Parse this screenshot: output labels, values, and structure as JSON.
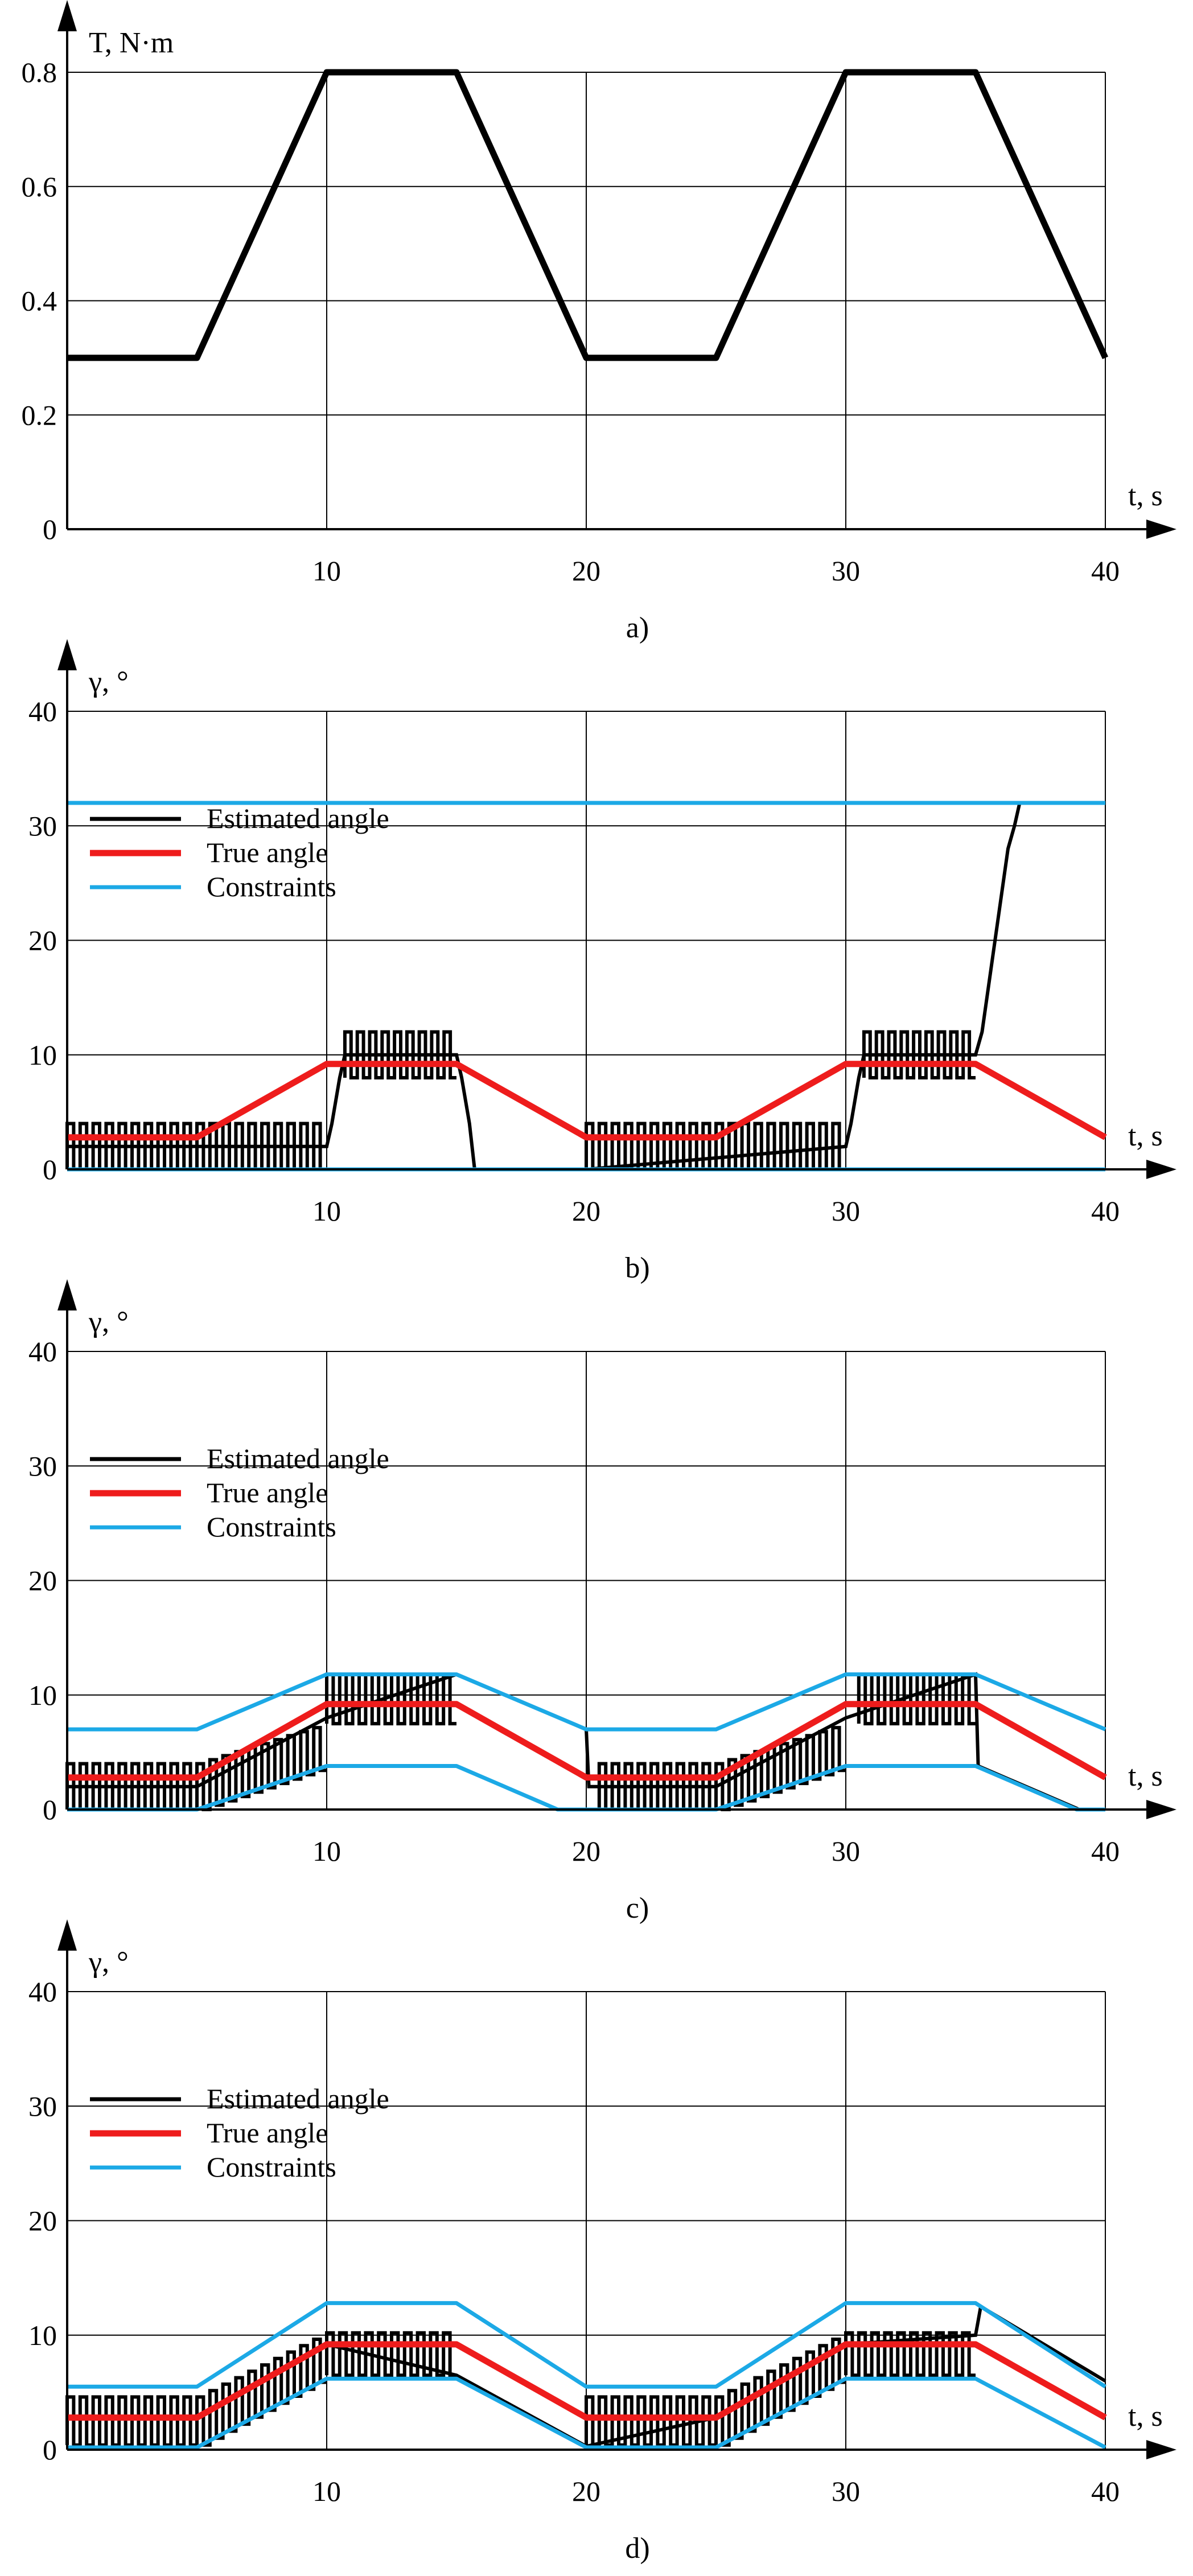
{
  "chart_data": [
    {
      "panel_label": "a)",
      "type": "line",
      "ylabel": "T, N·m",
      "xlabel": "t, s",
      "xlim": [
        0,
        40
      ],
      "ylim": [
        0,
        0.8
      ],
      "xticks": [
        10,
        20,
        30,
        40
      ],
      "yticks": [
        0,
        0.2,
        0.4,
        0.6,
        0.8
      ],
      "ytick_labels": [
        "0",
        "0.2",
        "0.4",
        "0.6",
        "0.8"
      ],
      "grid": true,
      "series": [
        {
          "color": "#000000",
          "style": "solid",
          "x": [
            0,
            5,
            10,
            15,
            20,
            25,
            30,
            35,
            40
          ],
          "y": [
            0.3,
            0.3,
            0.8,
            0.8,
            0.3,
            0.3,
            0.8,
            0.8,
            0.3
          ]
        }
      ]
    },
    {
      "panel_label": "b)",
      "type": "line",
      "ylabel": "γ, °",
      "xlabel": "t, s",
      "xlim": [
        0,
        40
      ],
      "ylim": [
        0,
        40
      ],
      "xticks": [
        10,
        20,
        30,
        40
      ],
      "yticks": [
        0,
        10,
        20,
        30,
        40
      ],
      "grid": true,
      "legend_position": "left",
      "series": [
        {
          "name": "Estimated angle",
          "color": "#000000",
          "style": "step",
          "x": [
            0,
            10,
            10.2,
            10.5,
            10.7,
            15,
            15.2,
            15.5,
            15.7,
            20,
            30,
            30.2,
            30.5,
            30.7,
            35,
            35.25,
            35.5,
            35.75,
            36,
            36.25,
            36.5,
            36.7,
            40
          ],
          "y": [
            2,
            2,
            4,
            8,
            10,
            10,
            8,
            4,
            0,
            0,
            2,
            4,
            8,
            10,
            10,
            12,
            16,
            20,
            24,
            28,
            30,
            32,
            32
          ],
          "dither_intervals": [
            {
              "x_from": 0,
              "x_to": 10,
              "lower": [
                0,
                0,
                0,
                0
              ],
              "upper": [
                4,
                4,
                4,
                4
              ]
            },
            {
              "x_from": 10.7,
              "x_to": 15,
              "lower": [
                8,
                8
              ],
              "upper": [
                12,
                12
              ]
            },
            {
              "x_from": 20,
              "x_to": 30,
              "lower": [
                0,
                0,
                0,
                0
              ],
              "upper": [
                4,
                4,
                4,
                4
              ]
            },
            {
              "x_from": 30.7,
              "x_to": 35,
              "lower": [
                8,
                8
              ],
              "upper": [
                12,
                12
              ]
            }
          ]
        },
        {
          "name": "True angle",
          "color": "#ee1c1c",
          "style": "solid",
          "x": [
            0,
            5,
            10,
            15,
            20,
            25,
            30,
            35,
            40
          ],
          "y": [
            2.8,
            2.8,
            9.2,
            9.2,
            2.8,
            2.8,
            9.2,
            9.2,
            2.8
          ]
        },
        {
          "name": "Constraints",
          "color": "#1ca9e6",
          "style": "solid",
          "x": [
            0,
            40
          ],
          "y": [
            32,
            32
          ]
        },
        {
          "name": "Constraints",
          "color": "#1ca9e6",
          "style": "solid",
          "x": [
            0,
            40
          ],
          "y": [
            0,
            0
          ]
        }
      ]
    },
    {
      "panel_label": "c)",
      "type": "line",
      "ylabel": "γ, °",
      "xlabel": "t, s",
      "xlim": [
        0,
        40
      ],
      "ylim": [
        0,
        40
      ],
      "xticks": [
        10,
        20,
        30,
        40
      ],
      "yticks": [
        0,
        10,
        20,
        30,
        40
      ],
      "grid": true,
      "legend_position": "left",
      "series": [
        {
          "name": "Estimated angle",
          "color": "#000000",
          "style": "step",
          "x": [
            0,
            5,
            10,
            15,
            20,
            20.1,
            25,
            30,
            35,
            35.1,
            39,
            40
          ],
          "y": [
            2,
            2,
            8,
            11.8,
            7,
            2,
            2,
            8,
            11.8,
            3.8,
            0,
            0
          ],
          "dither_intervals": [
            {
              "x_from": 0,
              "x_to": 5,
              "lower": [
                0,
                0
              ],
              "upper": [
                4,
                4
              ]
            },
            {
              "x_from": 5,
              "x_to": 10,
              "lower": [
                0,
                3.8
              ],
              "upper": [
                4,
                7.5
              ]
            },
            {
              "x_from": 10,
              "x_to": 15,
              "lower": [
                7.5,
                7.5
              ],
              "upper": [
                11.8,
                11.8
              ]
            },
            {
              "x_from": 20.5,
              "x_to": 25,
              "lower": [
                0,
                0
              ],
              "upper": [
                4,
                4
              ]
            },
            {
              "x_from": 25,
              "x_to": 30,
              "lower": [
                0,
                3.8
              ],
              "upper": [
                4,
                7.5
              ]
            },
            {
              "x_from": 30.5,
              "x_to": 35,
              "lower": [
                7.5,
                7.5
              ],
              "upper": [
                11.8,
                11.8
              ]
            }
          ]
        },
        {
          "name": "True angle",
          "color": "#ee1c1c",
          "style": "solid",
          "x": [
            0,
            5,
            10,
            15,
            20,
            25,
            30,
            35,
            40
          ],
          "y": [
            2.8,
            2.8,
            9.2,
            9.2,
            2.8,
            2.8,
            9.2,
            9.2,
            2.8
          ]
        },
        {
          "name": "Constraints",
          "color": "#1ca9e6",
          "style": "solid",
          "x": [
            0,
            5,
            10,
            15,
            20,
            25,
            30,
            35,
            40
          ],
          "y": [
            7,
            7,
            11.8,
            11.8,
            7,
            7,
            11.8,
            11.8,
            7
          ]
        },
        {
          "name": "Constraints",
          "color": "#1ca9e6",
          "style": "solid",
          "x": [
            0,
            5,
            10,
            15,
            18.9,
            20,
            25,
            30,
            35,
            38.9,
            40
          ],
          "y": [
            0,
            0,
            3.8,
            3.8,
            0,
            0,
            0,
            3.8,
            3.8,
            0,
            0
          ]
        }
      ]
    },
    {
      "panel_label": "d)",
      "type": "line",
      "ylabel": "γ, °",
      "xlabel": "t, s",
      "xlim": [
        0,
        40
      ],
      "ylim": [
        0,
        40
      ],
      "xticks": [
        10,
        20,
        30,
        40
      ],
      "yticks": [
        0,
        10,
        20,
        30,
        40
      ],
      "grid": true,
      "legend_position": "left",
      "series": [
        {
          "name": "Estimated angle",
          "color": "#000000",
          "style": "step",
          "x": [
            0,
            5,
            10,
            15,
            20,
            25,
            30,
            35,
            35.2,
            40
          ],
          "y": [
            2.8,
            2.8,
            9.2,
            6.5,
            0.3,
            2.8,
            9.2,
            10,
            12.5,
            6
          ],
          "dither_intervals": [
            {
              "x_from": 0,
              "x_to": 5,
              "lower": [
                0.4,
                0.4
              ],
              "upper": [
                4.6,
                4.6
              ]
            },
            {
              "x_from": 5,
              "x_to": 10,
              "lower": [
                0.4,
                6.5
              ],
              "upper": [
                4.6,
                10.2
              ]
            },
            {
              "x_from": 10,
              "x_to": 15,
              "lower": [
                6.5,
                6.5
              ],
              "upper": [
                10.2,
                10.2
              ]
            },
            {
              "x_from": 20,
              "x_to": 25,
              "lower": [
                0.4,
                0.4
              ],
              "upper": [
                4.6,
                4.6
              ]
            },
            {
              "x_from": 25,
              "x_to": 30,
              "lower": [
                0.4,
                6.5
              ],
              "upper": [
                4.6,
                10.2
              ]
            },
            {
              "x_from": 30,
              "x_to": 35,
              "lower": [
                6.5,
                6.5
              ],
              "upper": [
                10.2,
                10.2
              ]
            }
          ]
        },
        {
          "name": "True angle",
          "color": "#ee1c1c",
          "style": "solid",
          "x": [
            0,
            5,
            10,
            15,
            20,
            25,
            30,
            35,
            40
          ],
          "y": [
            2.8,
            2.8,
            9.2,
            9.2,
            2.8,
            2.8,
            9.2,
            9.2,
            2.8
          ]
        },
        {
          "name": "Constraints",
          "color": "#1ca9e6",
          "style": "solid",
          "x": [
            0,
            5,
            10,
            15,
            20,
            25,
            30,
            35,
            40
          ],
          "y": [
            5.5,
            5.5,
            12.8,
            12.8,
            5.5,
            5.5,
            12.8,
            12.8,
            5.5
          ]
        },
        {
          "name": "Constraints",
          "color": "#1ca9e6",
          "style": "solid",
          "x": [
            0,
            5,
            10,
            15,
            20,
            25,
            30,
            35,
            40
          ],
          "y": [
            0.2,
            0.2,
            6.2,
            6.2,
            0.2,
            0.2,
            6.2,
            6.2,
            0.2
          ]
        }
      ]
    }
  ]
}
